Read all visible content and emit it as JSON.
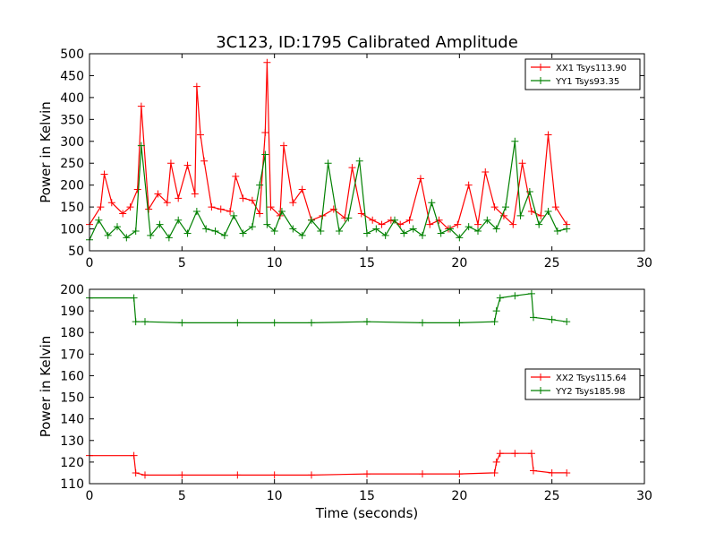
{
  "figure": {
    "title": "3C123, ID:1795 Calibrated Amplitude",
    "xlabel": "Time (seconds)"
  },
  "chart_data": [
    {
      "type": "line",
      "title": "3C123, ID:1795 Calibrated Amplitude",
      "xlabel": "",
      "ylabel": "Power in Kelvin",
      "xlim": [
        0,
        30
      ],
      "ylim": [
        50,
        500
      ],
      "xticks": [
        "0",
        "5",
        "10",
        "15",
        "20",
        "25",
        "30"
      ],
      "yticks": [
        "50",
        "100",
        "150",
        "200",
        "250",
        "300",
        "350",
        "400",
        "450",
        "500"
      ],
      "legend_position": "top-right",
      "series": [
        {
          "name": "XX1 Tsys113.90",
          "color": "#ff0000",
          "x": [
            0.0,
            0.6,
            0.8,
            1.2,
            1.8,
            2.2,
            2.6,
            2.8,
            3.2,
            3.7,
            4.2,
            4.4,
            4.8,
            5.3,
            5.7,
            5.8,
            6.0,
            6.2,
            6.6,
            7.1,
            7.6,
            7.9,
            8.3,
            8.8,
            9.2,
            9.5,
            9.6,
            9.8,
            10.3,
            10.5,
            11.0,
            11.5,
            12.0,
            12.6,
            13.2,
            13.8,
            14.2,
            14.7,
            15.3,
            15.8,
            16.3,
            16.8,
            17.3,
            17.9,
            18.4,
            18.9,
            19.4,
            19.9,
            20.5,
            21.0,
            21.4,
            21.9,
            22.4,
            22.9,
            23.4,
            23.9,
            24.4,
            24.8,
            25.2,
            25.8
          ],
          "values": [
            110,
            150,
            225,
            160,
            135,
            150,
            190,
            380,
            145,
            180,
            160,
            250,
            170,
            245,
            180,
            425,
            315,
            255,
            150,
            145,
            140,
            220,
            170,
            165,
            135,
            320,
            480,
            150,
            130,
            290,
            160,
            190,
            120,
            130,
            145,
            125,
            240,
            135,
            120,
            110,
            120,
            110,
            120,
            215,
            110,
            120,
            100,
            110,
            200,
            110,
            230,
            150,
            130,
            110,
            250,
            140,
            130,
            315,
            150,
            110
          ]
        },
        {
          "name": "YY1 Tsys93.35",
          "color": "#008000",
          "x": [
            0.0,
            0.5,
            1.0,
            1.5,
            2.0,
            2.5,
            2.8,
            3.3,
            3.8,
            4.3,
            4.8,
            5.3,
            5.8,
            6.3,
            6.8,
            7.3,
            7.8,
            8.3,
            8.8,
            9.2,
            9.5,
            9.6,
            10.0,
            10.4,
            11.0,
            11.5,
            12.0,
            12.5,
            12.9,
            13.5,
            14.0,
            14.6,
            15.0,
            15.5,
            16.0,
            16.5,
            17.0,
            17.5,
            18.0,
            18.5,
            19.0,
            19.5,
            20.0,
            20.5,
            21.0,
            21.5,
            22.0,
            22.5,
            23.0,
            23.3,
            23.8,
            24.3,
            24.8,
            25.3,
            25.8
          ],
          "values": [
            75,
            120,
            85,
            105,
            80,
            95,
            290,
            85,
            110,
            80,
            120,
            90,
            140,
            100,
            95,
            85,
            130,
            90,
            105,
            200,
            270,
            110,
            95,
            140,
            100,
            85,
            120,
            95,
            250,
            95,
            125,
            255,
            90,
            100,
            85,
            120,
            90,
            100,
            85,
            160,
            90,
            100,
            80,
            105,
            95,
            120,
            100,
            150,
            300,
            130,
            185,
            110,
            140,
            95,
            100
          ]
        }
      ]
    },
    {
      "type": "line",
      "title": "",
      "xlabel": "Time (seconds)",
      "ylabel": "Power in Kelvin",
      "xlim": [
        0,
        30
      ],
      "ylim": [
        110,
        200
      ],
      "xticks": [
        "0",
        "5",
        "10",
        "15",
        "20",
        "25",
        "30"
      ],
      "yticks": [
        "110",
        "120",
        "130",
        "140",
        "150",
        "160",
        "170",
        "180",
        "190",
        "200"
      ],
      "legend_position": "center-right",
      "series": [
        {
          "name": "XX2 Tsys115.64",
          "color": "#ff0000",
          "x": [
            0.0,
            2.4,
            2.5,
            3.0,
            5.0,
            8.0,
            10.0,
            12.0,
            15.0,
            18.0,
            20.0,
            21.9,
            22.0,
            22.2,
            23.0,
            23.9,
            24.0,
            25.0,
            25.8
          ],
          "values": [
            123,
            123,
            115,
            114,
            114,
            114,
            114,
            114,
            114.5,
            114.5,
            114.5,
            115,
            120,
            124,
            124,
            124,
            116,
            115,
            115
          ]
        },
        {
          "name": "YY2 Tsys185.98",
          "color": "#008000",
          "x": [
            0.0,
            2.4,
            2.5,
            3.0,
            5.0,
            8.0,
            10.0,
            12.0,
            15.0,
            18.0,
            20.0,
            21.9,
            22.0,
            22.2,
            23.0,
            23.9,
            24.0,
            25.0,
            25.8
          ],
          "values": [
            196,
            196,
            185,
            185,
            184.5,
            184.5,
            184.5,
            184.5,
            185,
            184.5,
            184.5,
            185,
            190,
            196,
            197,
            198,
            187,
            186,
            185
          ]
        }
      ]
    }
  ]
}
